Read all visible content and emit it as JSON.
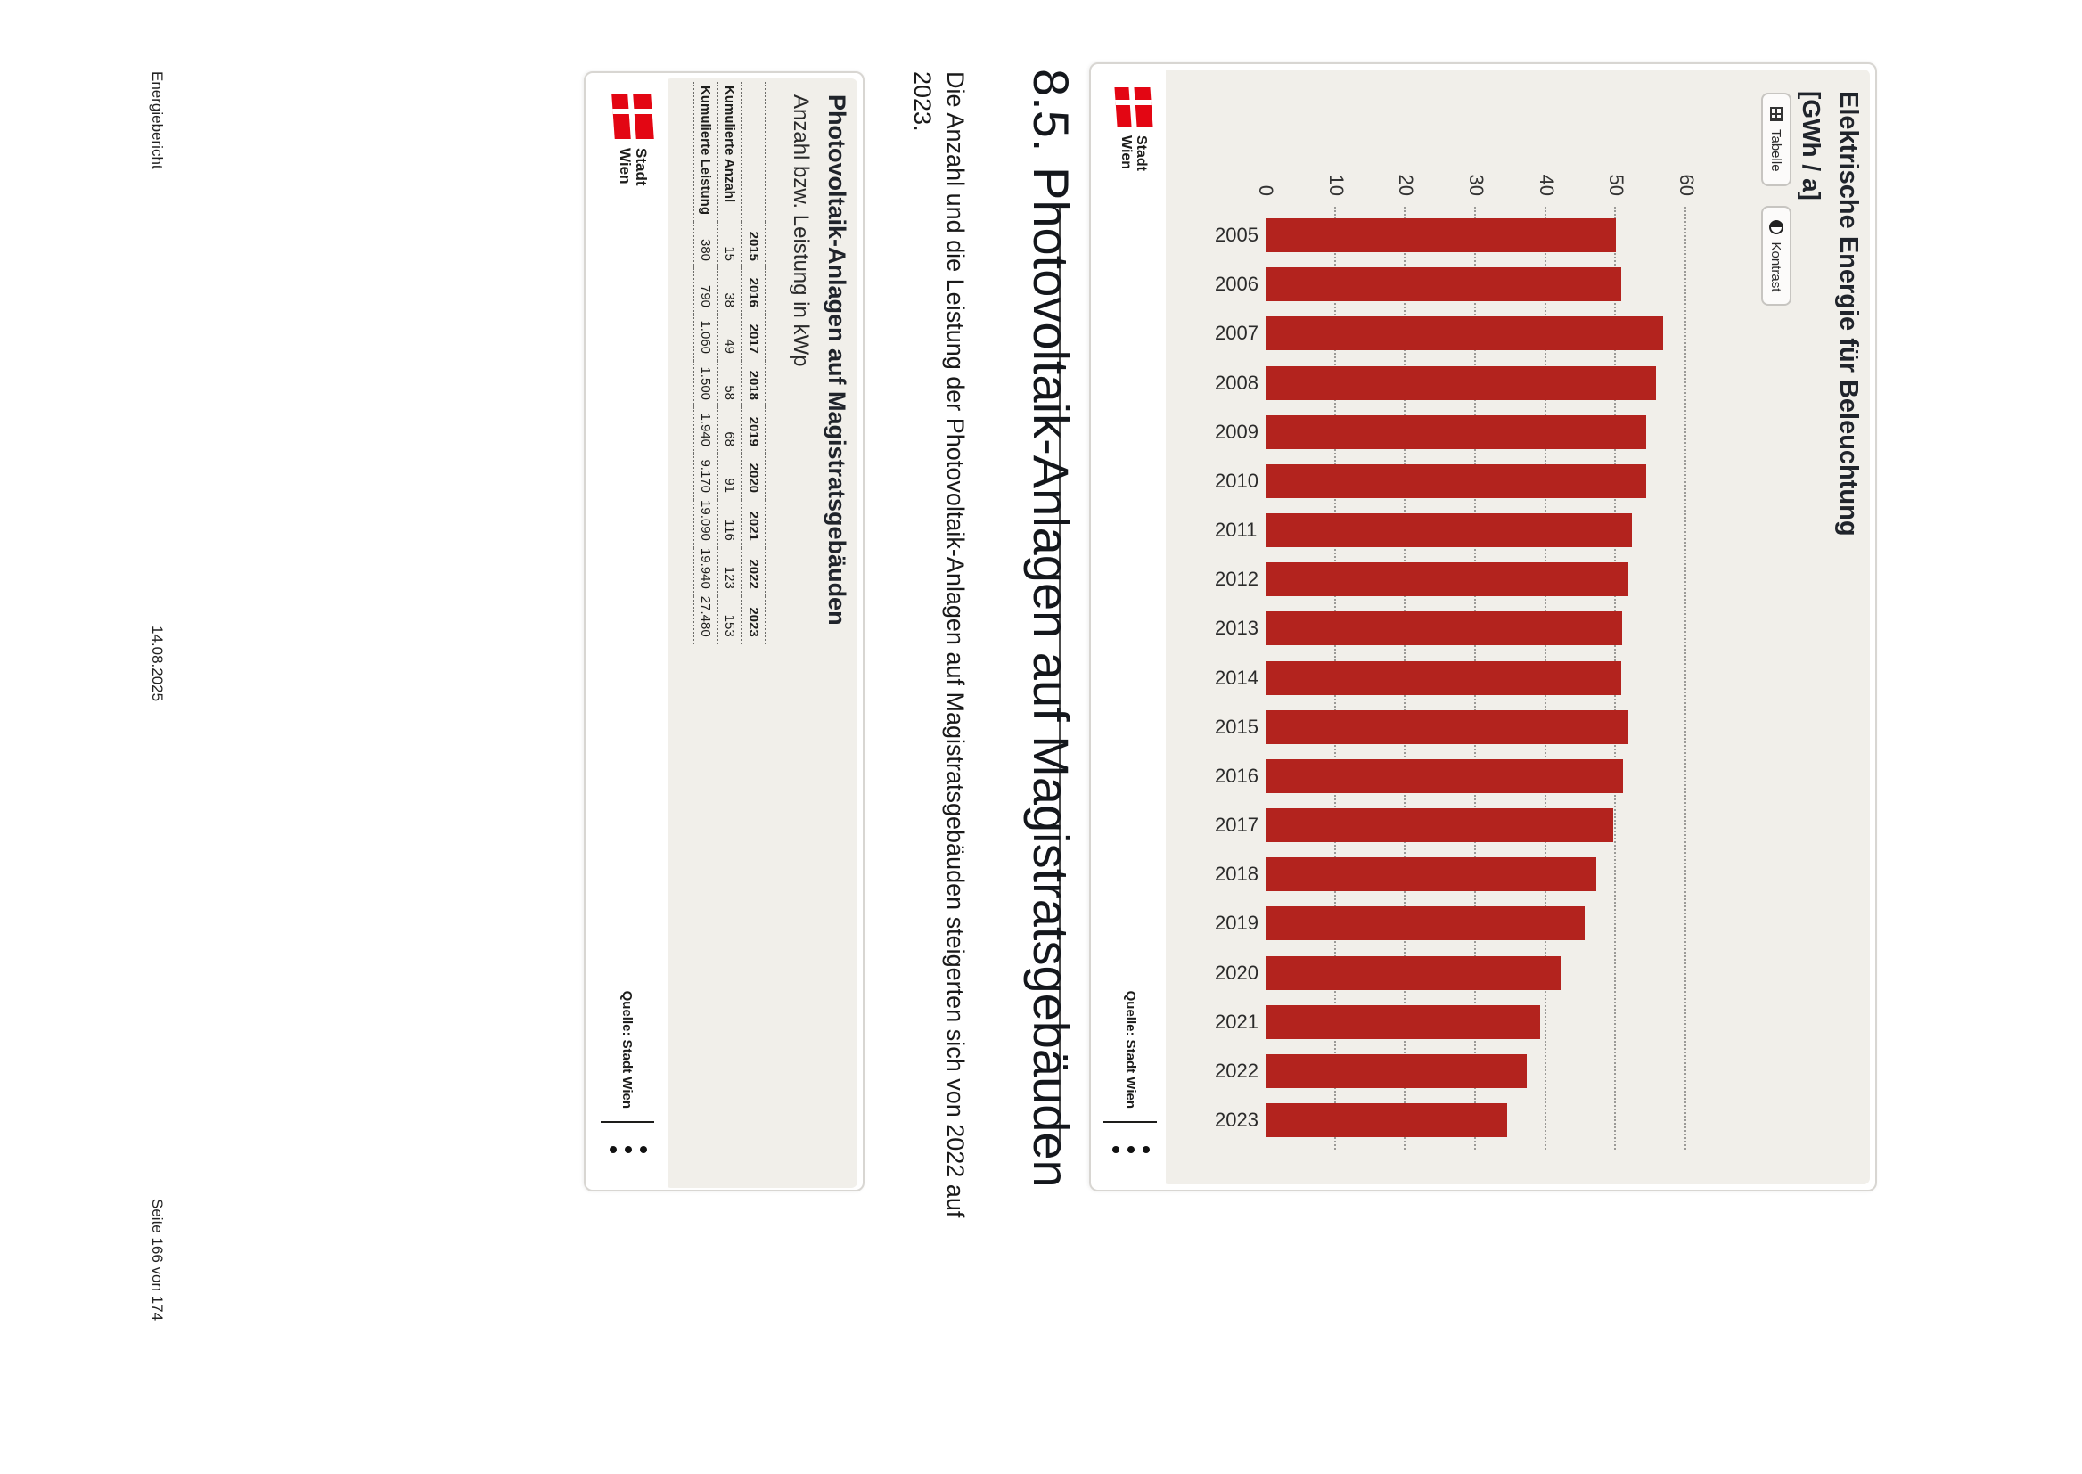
{
  "page_footer": {
    "document": "Energiebericht",
    "date": "14.08.2025",
    "page": "Seite 166 von 174"
  },
  "chart_card": {
    "title": "Elektrische Energie für Beleuchtung",
    "unit": "[GWh / a]",
    "buttons": {
      "table": "Tabelle",
      "contrast": "Kontrast"
    },
    "logo": {
      "line1": "Stadt",
      "line2": "Wien"
    },
    "quelle": "Quelle: Stadt Wien"
  },
  "chart_data": {
    "type": "bar",
    "title": "Elektrische Energie für Beleuchtung",
    "ylabel": "[GWh / a]",
    "categories": [
      2005,
      2006,
      2007,
      2008,
      2009,
      2010,
      2011,
      2012,
      2013,
      2014,
      2015,
      2016,
      2017,
      2018,
      2019,
      2020,
      2021,
      2022,
      2023
    ],
    "values": [
      50.0,
      50.7,
      56.7,
      55.7,
      54.3,
      54.3,
      52.3,
      51.7,
      50.9,
      50.7,
      51.8,
      51.0,
      49.6,
      47.2,
      45.5,
      42.2,
      39.1,
      37.2,
      34.4
    ],
    "ylim": [
      0,
      60
    ],
    "yticks": [
      0,
      10,
      20,
      30,
      40,
      50,
      60
    ],
    "grid": "dotted",
    "bar_color": "#b3231e",
    "plot_background": "#f1efea"
  },
  "section": {
    "number": "8.5.",
    "title": "Photovoltaik-Anlagen auf Magistratsgebäuden",
    "paragraph_lines": [
      "Die Anzahl und die Leistung der Photovoltaik-Anlagen auf Magistratsgebäuden steigerten sich von 2022 auf",
      "2023."
    ]
  },
  "table_card": {
    "title": "Photovoltaik-Anlagen auf Magistratsgebäuden",
    "subtitle": "Anzahl bzw. Leistung in kWp",
    "years": [
      "2015",
      "2016",
      "2017",
      "2018",
      "2019",
      "2020",
      "2021",
      "2022",
      "2023"
    ],
    "rows": [
      {
        "label": "Kumulierte Anzahl",
        "values": [
          "15",
          "38",
          "49",
          "58",
          "68",
          "91",
          "116",
          "123",
          "153"
        ]
      },
      {
        "label": "Kumulierte Leistung",
        "values": [
          "380",
          "790",
          "1.060",
          "1.500",
          "1.940",
          "9.170",
          "19.090",
          "19.940",
          "27.480"
        ]
      }
    ],
    "logo": {
      "line1": "Stadt",
      "line2": "Wien"
    },
    "quelle": "Quelle: Stadt Wien"
  },
  "colors": {
    "accent_red": "#b3231e",
    "wien_red": "#e30613",
    "panel_gray": "#f1efea",
    "text_dark": "#20242b"
  }
}
